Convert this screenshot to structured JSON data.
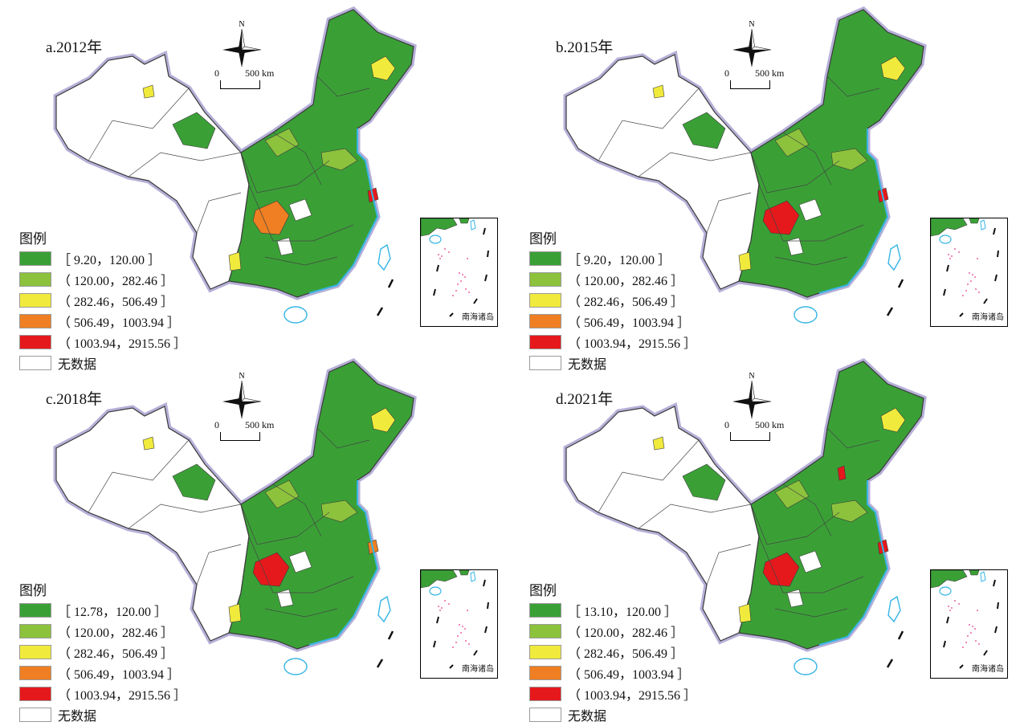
{
  "colors": {
    "class1": "#3aa036",
    "class2": "#8cc23c",
    "class3": "#f0ea3c",
    "class4": "#ef7f22",
    "class5": "#e5191c",
    "nodata": "#ffffff",
    "border": "#3a3a3a",
    "sea": "#36b5e5",
    "halo": "#b6b0d8",
    "islands": "#e5338a"
  },
  "common": {
    "north": "N",
    "scale_zero": "0",
    "scale_distance": "500 km",
    "legend_title": "图例",
    "inset_caption": "南海诸岛"
  },
  "panels": [
    {
      "title": "a.2012年",
      "legend": [
        "［ 9.20，120.00 ］",
        "（ 120.00，282.46 ］",
        "（ 282.46，506.49 ］",
        "（ 506.49，1003.94 ］",
        "（ 1003.94，2915.56 ］",
        "无数据"
      ],
      "hotspots": [
        {
          "cls": 4,
          "region": "chongqing-sichuan"
        },
        {
          "cls": 5,
          "region": "shanghai"
        }
      ]
    },
    {
      "title": "b.2015年",
      "legend": [
        "［ 9.20，120.00 ］",
        "（ 120.00，282.46 ］",
        "（ 282.46，506.49 ］",
        "（ 506.49，1003.94 ］",
        "（ 1003.94，2915.56 ］",
        "无数据"
      ],
      "hotspots": [
        {
          "cls": 5,
          "region": "chongqing-sichuan"
        },
        {
          "cls": 5,
          "region": "shanghai"
        }
      ]
    },
    {
      "title": "c.2018年",
      "legend": [
        "［ 12.78，120.00 ］",
        "（ 120.00，282.46 ］",
        "（ 282.46，506.49 ］",
        "（ 506.49，1003.94 ］",
        "（ 1003.94，2915.56 ］",
        "无数据"
      ],
      "hotspots": [
        {
          "cls": 5,
          "region": "chongqing-sichuan"
        },
        {
          "cls": 4,
          "region": "shanghai"
        }
      ]
    },
    {
      "title": "d.2021年",
      "legend": [
        "［ 13.10，120.00 ］",
        "（ 120.00，282.46 ］",
        "（ 282.46，506.49 ］",
        "（ 506.49，1003.94 ］",
        "（ 1003.94，2915.56 ］",
        "无数据"
      ],
      "hotspots": [
        {
          "cls": 5,
          "region": "chongqing-sichuan"
        },
        {
          "cls": 5,
          "region": "shanghai"
        },
        {
          "cls": 5,
          "region": "tianjin"
        }
      ]
    }
  ]
}
